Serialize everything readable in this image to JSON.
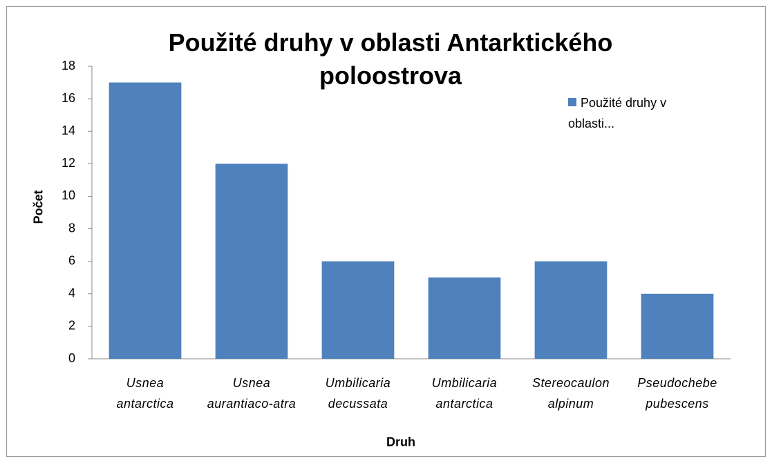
{
  "chart_data": {
    "type": "bar",
    "title": "Použité druhy v oblasti Antarktického poloostrova",
    "x_label": "Druh",
    "y_label": "Počet",
    "categories": [
      "Usnea antarctica",
      "Usnea aurantiaco-atra",
      "Umbilicaria decussata",
      "Umbilicaria antarctica",
      "Stereocaulon alpinum",
      "Pseudochebe pubescens"
    ],
    "series": [
      {
        "name": "Použité druhy v oblasti...",
        "color": "#4f81bd",
        "values": [
          17,
          12,
          6,
          5,
          6,
          4
        ]
      }
    ],
    "ylim": [
      0,
      18
    ],
    "yticks": [
      0,
      2,
      4,
      6,
      8,
      10,
      12,
      14,
      16,
      18
    ],
    "grid": false,
    "legend": "right"
  }
}
